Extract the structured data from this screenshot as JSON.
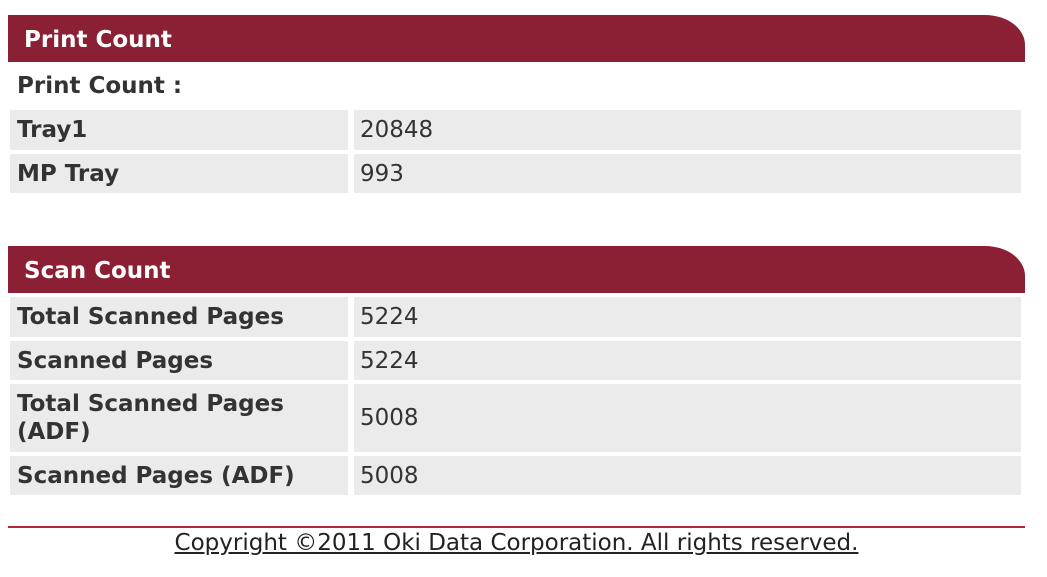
{
  "sections": [
    {
      "title": "Print Count",
      "subtitle": "Print Count :",
      "rows": [
        [
          "Tray1",
          "20848"
        ],
        [
          "MP Tray",
          "993"
        ]
      ]
    },
    {
      "title": "Scan Count",
      "rows": [
        [
          "Total Scanned Pages",
          "5224"
        ],
        [
          "Scanned Pages",
          "5224"
        ],
        [
          "Total Scanned Pages (ADF)",
          "5008"
        ],
        [
          "Scanned Pages (ADF)",
          "5008"
        ]
      ]
    }
  ],
  "footer": {
    "copyright": "Copyright ©2011 Oki Data Corporation. All rights reserved."
  }
}
